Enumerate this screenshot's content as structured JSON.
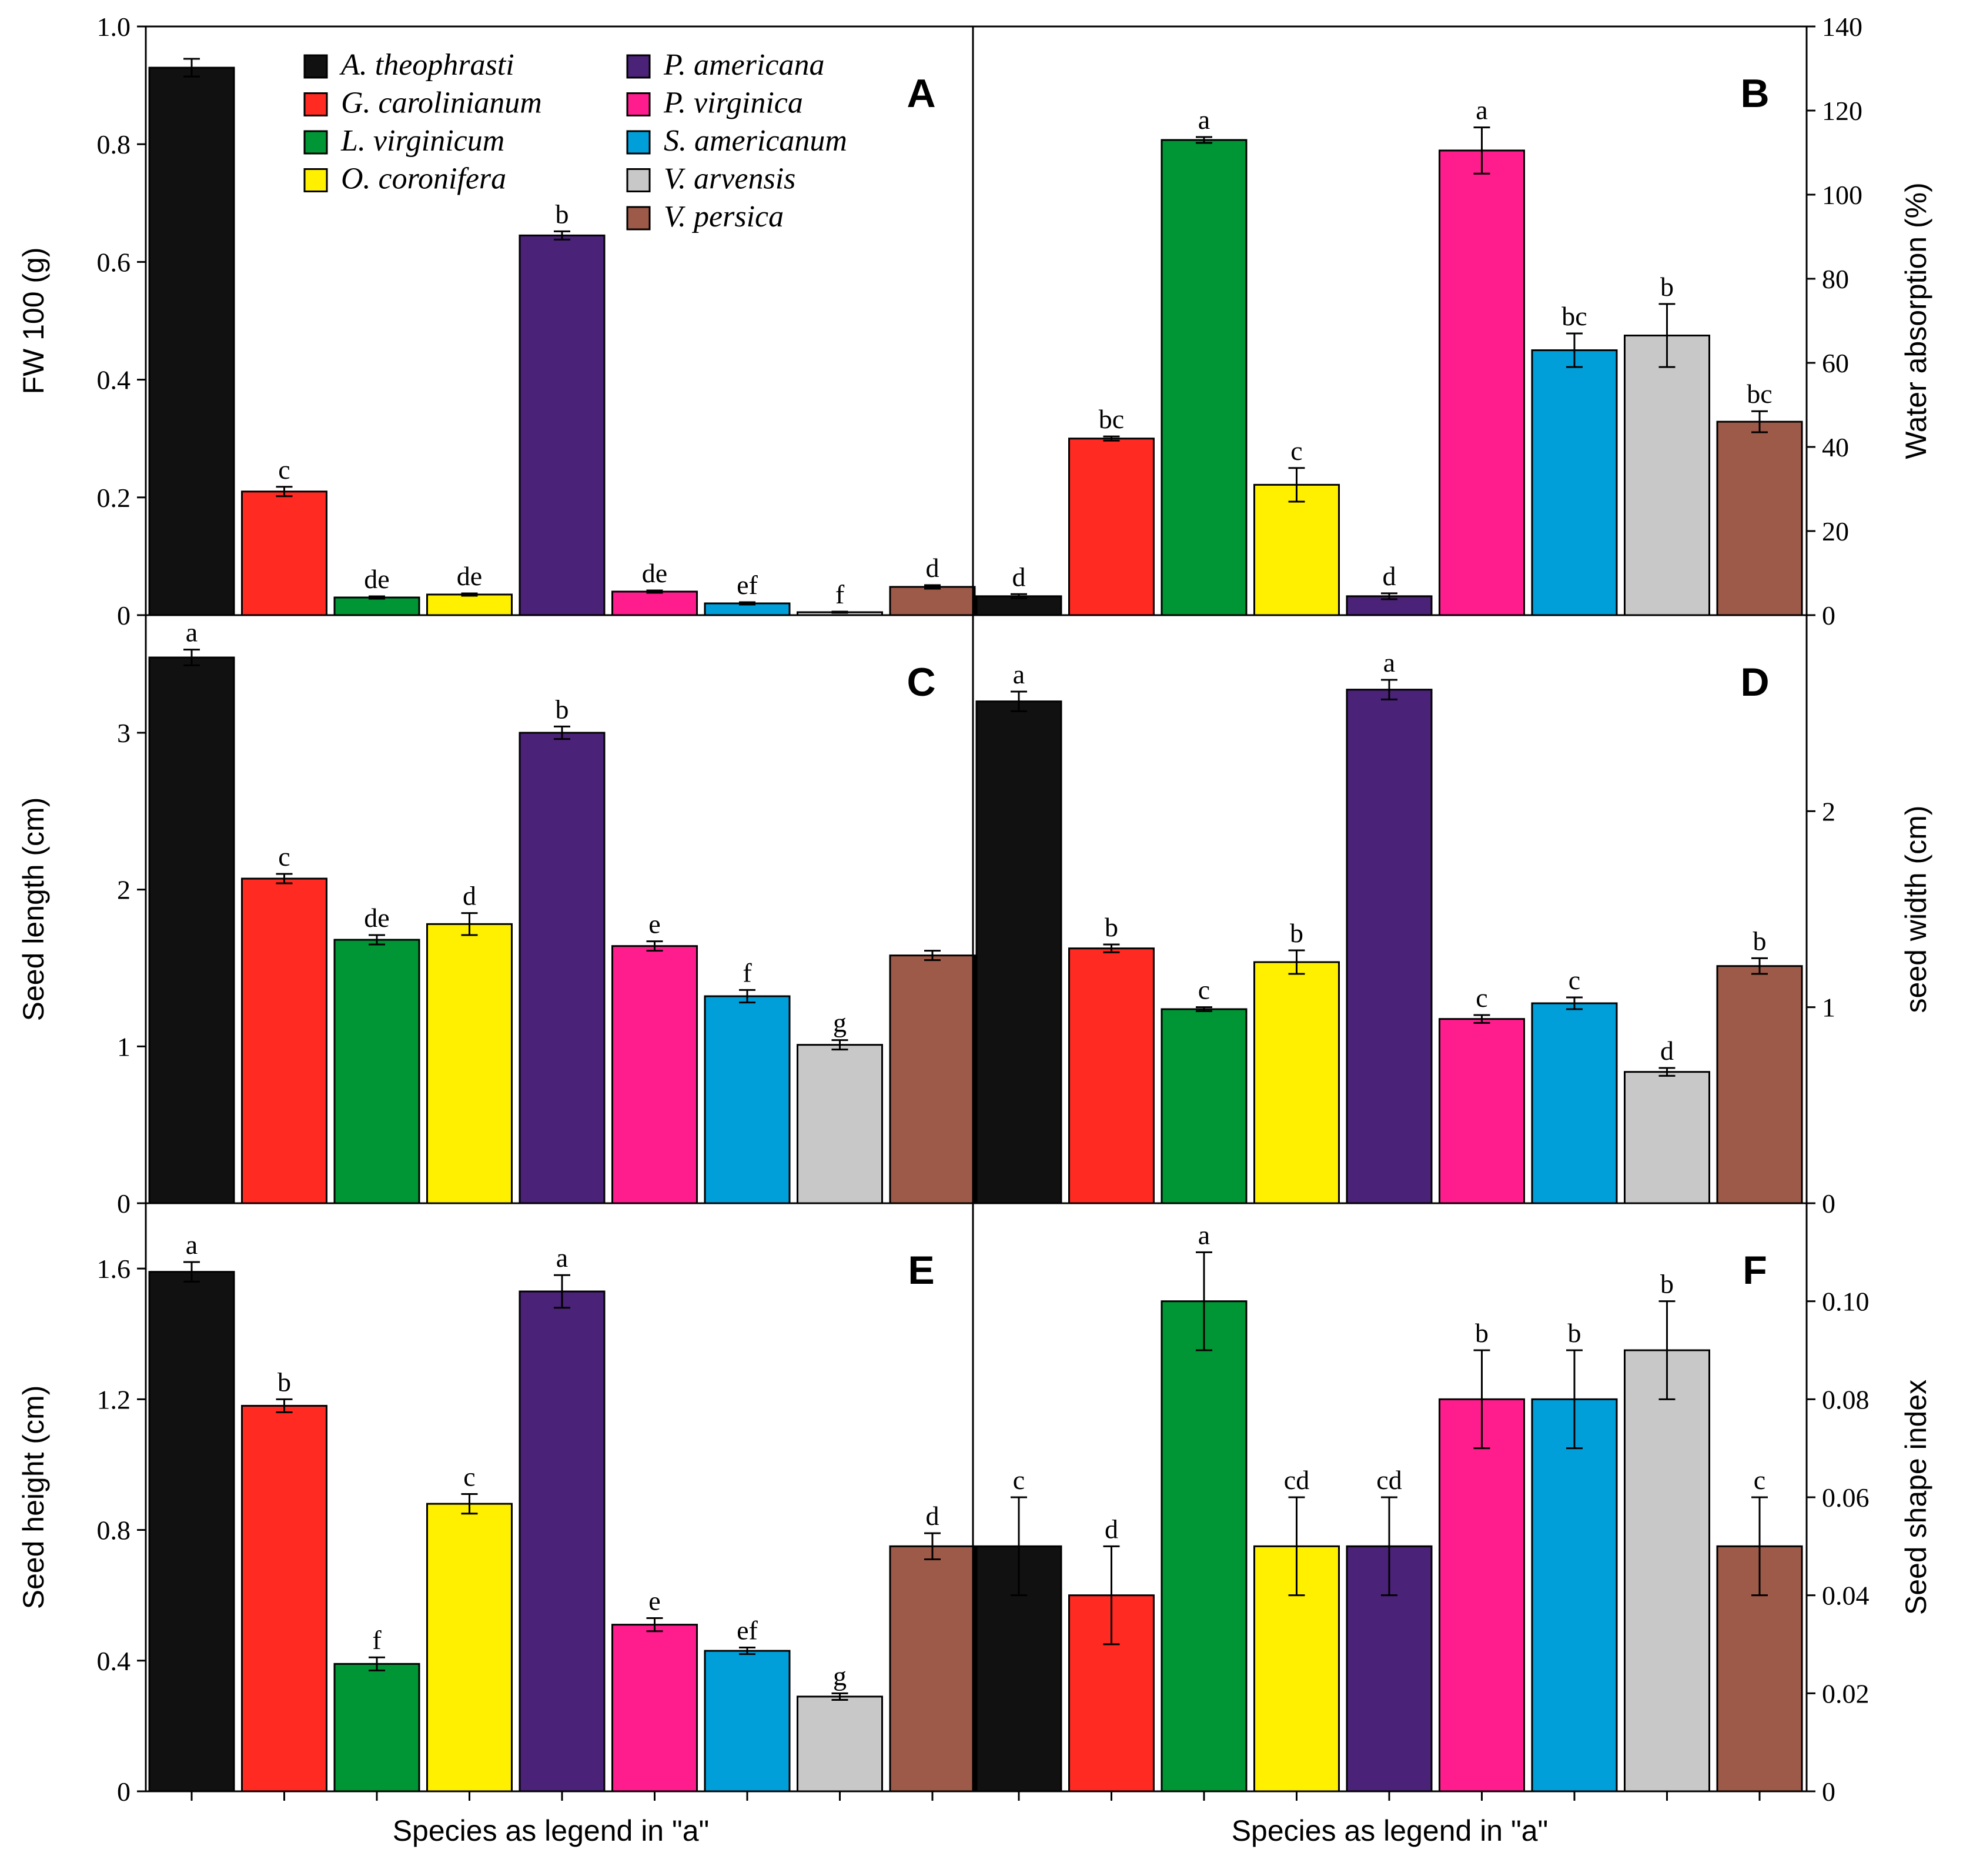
{
  "species": [
    {
      "name": "A. theophrasti",
      "color": "#111111"
    },
    {
      "name": "G. carolinianum",
      "color": "#ff2a22"
    },
    {
      "name": "L. virginicum",
      "color": "#009535"
    },
    {
      "name": "O. coronifera",
      "color": "#fff000"
    },
    {
      "name": "P. americana",
      "color": "#4a2278"
    },
    {
      "name": "P. virginica",
      "color": "#ff1d8e"
    },
    {
      "name": "S. americanum",
      "color": "#009fda"
    },
    {
      "name": "V. arvensis",
      "color": "#c8c8c8"
    },
    {
      "name": "V. persica",
      "color": "#9e5a48"
    }
  ],
  "x_axis_label": "Species as legend in \"a\"",
  "chart_data": [
    {
      "panel": "A",
      "type": "bar",
      "ylabel": "FW 100 (g)",
      "ylim": [
        0,
        1.0
      ],
      "axis_side": "left",
      "ticks": [
        0,
        0.2,
        0.4,
        0.6,
        0.8,
        1.0
      ],
      "tick_labels": [
        "0",
        "0.2",
        "0.4",
        "0.6",
        "0.8",
        "1.0"
      ],
      "values": [
        0.93,
        0.21,
        0.03,
        0.035,
        0.645,
        0.04,
        0.02,
        0.005,
        0.048
      ],
      "errors": [
        0.015,
        0.008,
        0.002,
        0.002,
        0.007,
        0.002,
        0.002,
        0.001,
        0.003
      ],
      "letters": [
        "",
        "c",
        "de",
        "de",
        "b",
        "de",
        "ef",
        "f",
        "d"
      ]
    },
    {
      "panel": "B",
      "type": "bar",
      "ylabel": "Water absorption (%)",
      "ylim": [
        0,
        140
      ],
      "axis_side": "right",
      "ticks": [
        0,
        20,
        40,
        60,
        80,
        100,
        120,
        140
      ],
      "tick_labels": [
        "0",
        "20",
        "40",
        "60",
        "80",
        "100",
        "120",
        "140"
      ],
      "values": [
        4.5,
        42,
        113,
        31,
        4.5,
        110.5,
        63,
        66.5,
        46
      ],
      "errors": [
        0.5,
        0.5,
        0.7,
        4,
        0.7,
        5.5,
        4,
        7.5,
        2.5
      ],
      "letters": [
        "d",
        "bc",
        "a",
        "c",
        "d",
        "a",
        "bc",
        "b",
        "bc"
      ]
    },
    {
      "panel": "C",
      "type": "bar",
      "ylabel": "Seed length (cm)",
      "ylim": [
        0,
        3.75
      ],
      "axis_side": "left",
      "ticks": [
        0,
        1,
        2,
        3
      ],
      "tick_labels": [
        "0",
        "1",
        "2",
        "3"
      ],
      "values": [
        3.48,
        2.07,
        1.68,
        1.78,
        3.0,
        1.64,
        1.32,
        1.01,
        1.58
      ],
      "errors": [
        0.05,
        0.03,
        0.03,
        0.07,
        0.04,
        0.03,
        0.04,
        0.03,
        0.03
      ],
      "letters": [
        "a",
        "c",
        "de",
        "d",
        "b",
        "e",
        "f",
        "g",
        ""
      ]
    },
    {
      "panel": "D",
      "type": "bar",
      "ylabel": "seed width (cm)",
      "ylim": [
        0,
        3.0
      ],
      "axis_side": "right",
      "ticks": [
        0,
        1,
        2
      ],
      "tick_labels": [
        "0",
        "1",
        "2"
      ],
      "values": [
        2.56,
        1.3,
        0.99,
        1.23,
        2.62,
        0.94,
        1.02,
        0.67,
        1.21
      ],
      "errors": [
        0.05,
        0.02,
        0.01,
        0.06,
        0.05,
        0.02,
        0.03,
        0.02,
        0.04
      ],
      "letters": [
        "a",
        "b",
        "c",
        "b",
        "a",
        "c",
        "c",
        "d",
        "b"
      ]
    },
    {
      "panel": "E",
      "type": "bar",
      "ylabel": "Seed height (cm)",
      "ylim": [
        0,
        1.8
      ],
      "axis_side": "left",
      "ticks": [
        0,
        0.4,
        0.8,
        1.2,
        1.6
      ],
      "tick_labels": [
        "0",
        "0.4",
        "0.8",
        "1.2",
        "1.6"
      ],
      "values": [
        1.59,
        1.18,
        0.39,
        0.88,
        1.53,
        0.51,
        0.43,
        0.29,
        0.75
      ],
      "errors": [
        0.03,
        0.02,
        0.02,
        0.03,
        0.05,
        0.02,
        0.01,
        0.01,
        0.04
      ],
      "letters": [
        "a",
        "b",
        "f",
        "c",
        "a",
        "e",
        "ef",
        "g",
        "d"
      ]
    },
    {
      "panel": "F",
      "type": "bar",
      "ylabel": "Seed shape index",
      "ylim": [
        0,
        0.12
      ],
      "axis_side": "right",
      "ticks": [
        0,
        0.02,
        0.04,
        0.06,
        0.08,
        0.1
      ],
      "tick_labels": [
        "0",
        "0.02",
        "0.04",
        "0.06",
        "0.08",
        "0.10"
      ],
      "values": [
        0.05,
        0.04,
        0.1,
        0.05,
        0.05,
        0.08,
        0.08,
        0.09,
        0.05
      ],
      "errors": [
        0.01,
        0.01,
        0.01,
        0.01,
        0.01,
        0.01,
        0.01,
        0.01,
        0.01
      ],
      "letters": [
        "c",
        "d",
        "a",
        "cd",
        "cd",
        "b",
        "b",
        "b",
        "c"
      ]
    }
  ]
}
